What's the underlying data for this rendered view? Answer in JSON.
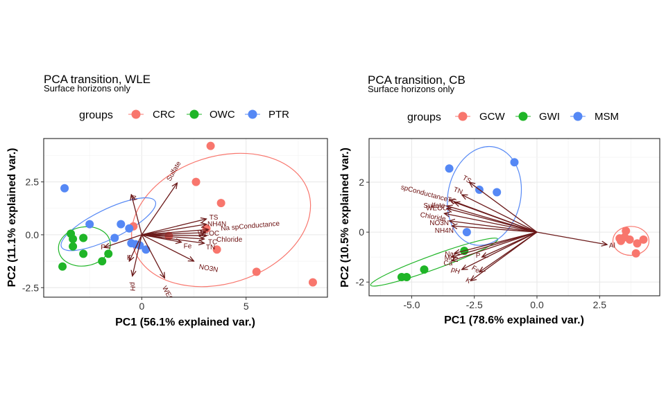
{
  "chart_data": [
    {
      "type": "scatter",
      "title": "PCA transition, WLE",
      "subtitle": "Surface horizons only",
      "xlabel": "PC1 (56.1% explained var.)",
      "ylabel": "PC2 (11.1% explained var.)",
      "xlim": [
        -4.7,
        8.9
      ],
      "ylim": [
        -2.95,
        4.55
      ],
      "xticks": [
        0,
        5
      ],
      "yticks": [
        -2.5,
        0.0,
        2.5
      ],
      "xtick_labels": [
        "0",
        "5"
      ],
      "ytick_labels": [
        "-2.5",
        "0.0",
        "2.5"
      ],
      "grid": true,
      "legend": {
        "title": "groups",
        "position": "top",
        "entries": [
          {
            "name": "CRC",
            "color": "#F8766D"
          },
          {
            "name": "OWC",
            "color": "#1FB527"
          },
          {
            "name": "PTR",
            "color": "#5588F5"
          }
        ]
      },
      "series": [
        {
          "name": "CRC",
          "color": "#F8766D",
          "x": [
            3.3,
            2.6,
            3.8,
            3.1,
            3.6,
            1.3,
            -0.4,
            5.5,
            8.2
          ],
          "y": [
            4.2,
            2.5,
            1.5,
            0.3,
            -0.7,
            -0.05,
            0.4,
            -1.75,
            -2.25
          ]
        },
        {
          "name": "OWC",
          "color": "#1FB527",
          "x": [
            -3.4,
            -3.3,
            -3.3,
            -2.8,
            -2.8,
            -1.9,
            -1.6,
            -3.8
          ],
          "y": [
            0.05,
            -0.2,
            -0.55,
            -0.15,
            -0.9,
            -1.25,
            -0.9,
            -1.5
          ]
        },
        {
          "name": "PTR",
          "color": "#5588F5",
          "x": [
            -3.7,
            -2.5,
            -1.0,
            -1.3,
            -0.6,
            -0.5,
            -0.3,
            -0.1,
            0.2
          ],
          "y": [
            2.2,
            0.5,
            0.5,
            -0.15,
            0.3,
            -0.4,
            -0.45,
            -0.5,
            -0.7
          ]
        }
      ],
      "ellipses": [
        {
          "group": "CRC",
          "color": "#F8766D",
          "cx": 3.8,
          "cy": 0.7,
          "rx": 4.4,
          "ry": 3.0,
          "angle": -18
        },
        {
          "group": "OWC",
          "color": "#1FB527",
          "cx": -2.75,
          "cy": -0.55,
          "rx": 1.25,
          "ry": 0.92,
          "angle": -10
        },
        {
          "group": "PTR",
          "color": "#5588F5",
          "cx": -1.6,
          "cy": 0.5,
          "rx": 2.5,
          "ry": 0.7,
          "angle": -26
        }
      ],
      "loadings": [
        {
          "label": "Sulfate",
          "x": 1.7,
          "y": 2.45,
          "lx": 1.55,
          "ly": 3.0,
          "rot": -60
        },
        {
          "label": "TS",
          "x": 3.1,
          "y": 0.75,
          "lx": 3.45,
          "ly": 0.8,
          "rot": 0
        },
        {
          "label": "NH4N",
          "x": 3.1,
          "y": 0.5,
          "lx": 3.6,
          "ly": 0.5,
          "rot": 0
        },
        {
          "label": "Na spConductance",
          "x": 3.2,
          "y": 0.25,
          "lx": 5.2,
          "ly": 0.4,
          "rot": -5
        },
        {
          "label": "WEOC",
          "x": 3.05,
          "y": 0.1,
          "lx": 3.2,
          "ly": 0.05,
          "rot": 0
        },
        {
          "label": "Chloride",
          "x": 3.1,
          "y": -0.05,
          "lx": 4.2,
          "ly": -0.25,
          "rot": 0
        },
        {
          "label": "TC",
          "x": 3.0,
          "y": -0.2,
          "lx": 3.4,
          "ly": -0.35,
          "rot": 0
        },
        {
          "label": "TN",
          "x": 3.0,
          "y": -0.4,
          "lx": 3.3,
          "ly": -0.6,
          "rot": 0
        },
        {
          "label": "Fe",
          "x": 1.9,
          "y": -0.35,
          "lx": 2.2,
          "ly": -0.55,
          "rot": 0
        },
        {
          "label": "NO3N",
          "x": 2.5,
          "y": -1.25,
          "lx": 3.2,
          "ly": -1.6,
          "rot": 10
        },
        {
          "label": "WEON",
          "x": 1.1,
          "y": -2.05,
          "lx": 1.3,
          "ly": -2.9,
          "rot": 62
        },
        {
          "label": "pH",
          "x": -0.45,
          "y": -1.95,
          "lx": -0.45,
          "ly": -2.45,
          "rot": 95
        },
        {
          "label": "K",
          "x": -0.6,
          "y": -1.25,
          "lx": -0.6,
          "ly": -1.1,
          "rot": 0
        },
        {
          "label": "P",
          "x": -1.8,
          "y": -0.6,
          "lx": -1.85,
          "ly": -0.6,
          "rot": 0
        },
        {
          "label": "Al",
          "x": -0.5,
          "y": 1.9,
          "lx": -0.4,
          "ly": 1.75,
          "rot": 75
        }
      ]
    },
    {
      "type": "scatter",
      "title": "PCA transition, CB",
      "subtitle": "Surface horizons only",
      "xlabel": "PC1 (78.6% explained var.)",
      "ylabel": "PC2 (10.5% explained var.)",
      "xlim": [
        -6.7,
        4.9
      ],
      "ylim": [
        -2.55,
        3.75
      ],
      "xticks": [
        -5.0,
        -2.5,
        0.0,
        2.5
      ],
      "yticks": [
        -2,
        0,
        2
      ],
      "xtick_labels": [
        "-5.0",
        "-2.5",
        "0.0",
        "2.5"
      ],
      "ytick_labels": [
        "-2",
        "0",
        "2"
      ],
      "grid": true,
      "legend": {
        "title": "groups",
        "position": "top",
        "entries": [
          {
            "name": "GCW",
            "color": "#F8766D"
          },
          {
            "name": "GWI",
            "color": "#1FB527"
          },
          {
            "name": "MSM",
            "color": "#5588F5"
          }
        ]
      },
      "series": [
        {
          "name": "GCW",
          "color": "#F8766D",
          "x": [
            3.55,
            3.3,
            3.35,
            3.5,
            3.7,
            4.0,
            4.25,
            3.95
          ],
          "y": [
            0.05,
            -0.25,
            -0.35,
            -0.2,
            -0.3,
            -0.45,
            -0.3,
            -0.85
          ]
        },
        {
          "name": "GWI",
          "color": "#1FB527",
          "x": [
            -5.4,
            -5.2,
            -4.5,
            -2.9
          ],
          "y": [
            -1.8,
            -1.8,
            -1.5,
            -0.75
          ]
        },
        {
          "name": "MSM",
          "color": "#5588F5",
          "x": [
            -3.5,
            -0.9,
            -2.3,
            -1.6,
            -2.8
          ],
          "y": [
            2.55,
            2.8,
            1.7,
            1.6,
            0.0
          ]
        }
      ],
      "ellipses": [
        {
          "group": "GCW",
          "color": "#F8766D",
          "cx": 3.75,
          "cy": -0.35,
          "rx": 0.72,
          "ry": 0.58,
          "angle": 0
        },
        {
          "group": "GWI",
          "color": "#1FB527",
          "cx": -4.1,
          "cy": -1.2,
          "rx": 2.7,
          "ry": 0.28,
          "angle": -20
        },
        {
          "group": "MSM",
          "color": "#5588F5",
          "cx": -2.1,
          "cy": 1.45,
          "rx": 1.45,
          "ry": 2.0,
          "angle": 12
        }
      ],
      "loadings": [
        {
          "label": "TS",
          "x": -2.7,
          "y": 2.0,
          "lx": -2.8,
          "ly": 2.1,
          "rot": 30
        },
        {
          "label": "TN",
          "x": -3.0,
          "y": 1.5,
          "lx": -3.15,
          "ly": 1.65,
          "rot": 20
        },
        {
          "label": "spConductance",
          "x": -3.5,
          "y": 1.3,
          "lx": -4.5,
          "ly": 1.55,
          "rot": 15
        },
        {
          "label": "TC",
          "x": -3.3,
          "y": 1.2,
          "lx": -3.4,
          "ly": 1.25,
          "rot": 15
        },
        {
          "label": "Sulfate",
          "x": -3.6,
          "y": 1.05,
          "lx": -4.1,
          "ly": 1.05,
          "rot": 0
        },
        {
          "label": "WEOC",
          "x": -3.6,
          "y": 0.95,
          "lx": -4.0,
          "ly": 0.95,
          "rot": 0
        },
        {
          "label": "Chloride",
          "x": -3.7,
          "y": 0.75,
          "lx": -4.15,
          "ly": 0.6,
          "rot": 10
        },
        {
          "label": "NO3N",
          "x": -3.5,
          "y": 0.45,
          "lx": -3.9,
          "ly": 0.35,
          "rot": 0
        },
        {
          "label": "NH4N",
          "x": -3.4,
          "y": 0.25,
          "lx": -3.7,
          "ly": 0.05,
          "rot": 0
        },
        {
          "label": "Al",
          "x": 2.8,
          "y": -0.5,
          "lx": 3.0,
          "ly": -0.55,
          "rot": 0
        },
        {
          "label": "Na",
          "x": -3.3,
          "y": -0.85,
          "lx": -3.5,
          "ly": -0.9,
          "rot": 0
        },
        {
          "label": "Mg",
          "x": -3.4,
          "y": -1.0,
          "lx": -3.5,
          "ly": -1.05,
          "rot": 0
        },
        {
          "label": "Ca",
          "x": -3.4,
          "y": -1.15,
          "lx": -3.55,
          "ly": -1.25,
          "rot": 0
        },
        {
          "label": "P",
          "x": -2.2,
          "y": -1.0,
          "lx": -2.35,
          "ly": -0.95,
          "rot": 0
        },
        {
          "label": "pH",
          "x": -3.0,
          "y": -1.5,
          "lx": -3.25,
          "ly": -1.55,
          "rot": 20
        },
        {
          "label": "Fe",
          "x": -2.3,
          "y": -1.6,
          "lx": -2.45,
          "ly": -1.5,
          "rot": 30
        },
        {
          "label": "K",
          "x": -2.65,
          "y": -1.95,
          "lx": -2.75,
          "ly": -1.95,
          "rot": 30
        }
      ]
    }
  ]
}
